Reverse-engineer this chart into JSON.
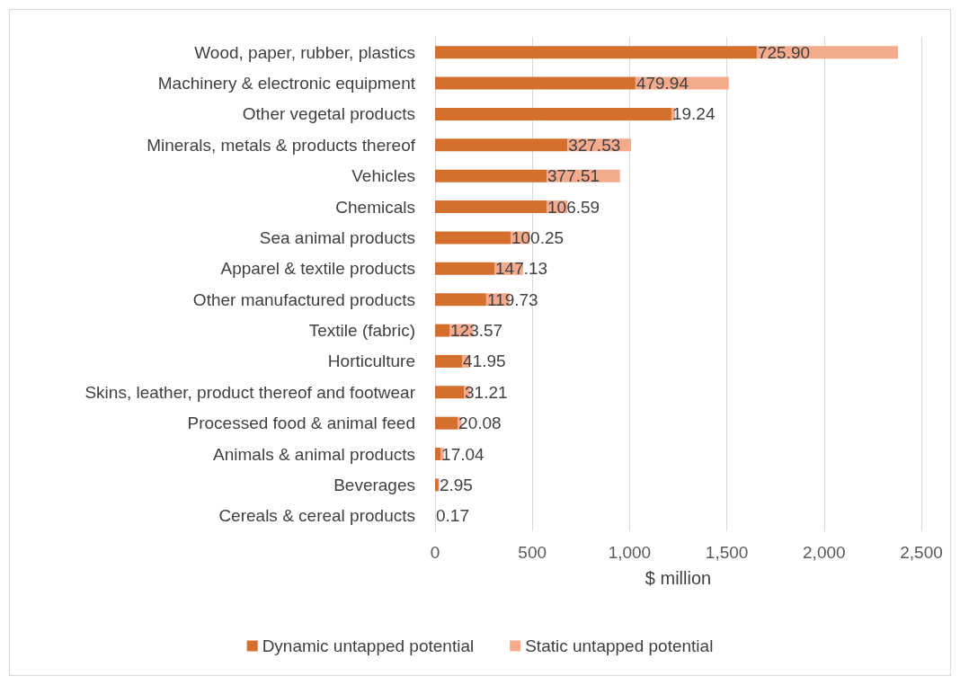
{
  "chart_data": {
    "type": "bar",
    "orientation": "horizontal",
    "stacked": true,
    "xlabel": "$ million",
    "categories": [
      "Wood, paper, rubber, plastics",
      "Machinery & electronic equipment",
      "Other vegetal products",
      "Minerals, metals & products thereof",
      "Vehicles",
      "Chemicals",
      "Sea animal products",
      "Apparel & textile products",
      "Other manufactured products",
      "Textile (fabric)",
      "Horticulture",
      "Skins, leather, product thereof and footwear",
      "Processed food & animal feed",
      "Animals & animal products",
      "Beverages",
      "Cereals & cereal products"
    ],
    "series": [
      {
        "name": "Dynamic untapped potential",
        "color": "#d46f2e",
        "values": [
          1654,
          1030,
          1215,
          680,
          573,
          573,
          388,
          305,
          263,
          74,
          139,
          148,
          116,
          28,
          18,
          0
        ]
      },
      {
        "name": "Static untapped potential",
        "color": "#f4aa8c",
        "values": [
          725.9,
          479.94,
          19.24,
          327.53,
          377.51,
          106.59,
          100.25,
          147.13,
          119.73,
          123.57,
          41.95,
          31.21,
          20.08,
          17.04,
          2.95,
          0.17
        ],
        "value_labels": [
          "725.90",
          "479.94",
          "19.24",
          "327.53",
          "377.51",
          "106.59",
          "100.25",
          "147.13",
          "119.73",
          "123.57",
          "41.95",
          "31.21",
          "20.08",
          "17.04",
          "2.95",
          "0.17"
        ]
      }
    ],
    "xlim": [
      0,
      2500
    ],
    "xticks": [
      0,
      500,
      {
        "value": 1000,
        "label": "1,000"
      },
      {
        "value": 1500,
        "label": "1,500"
      },
      {
        "value": 2000,
        "label": "2,000"
      },
      {
        "value": 2500,
        "label": "2,500"
      }
    ],
    "grid": "x",
    "legend": "bottom"
  }
}
